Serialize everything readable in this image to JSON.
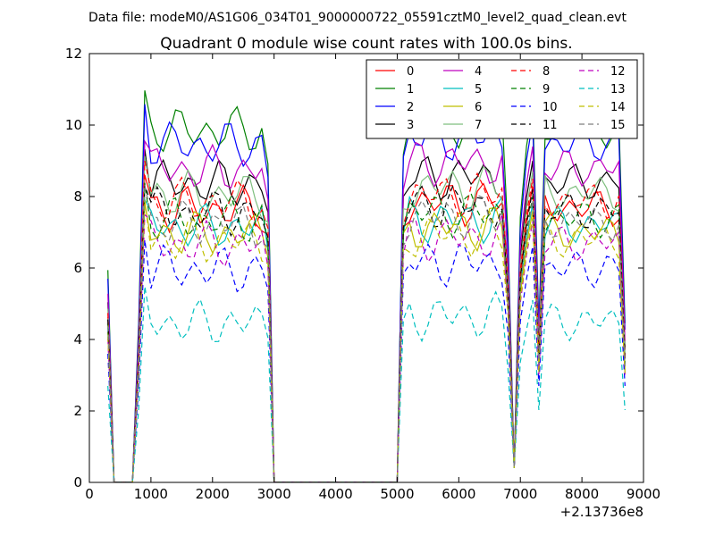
{
  "chart_data": {
    "type": "line",
    "suptitle": "Data file: modeM0/AS1G06_034T01_9000000722_05591cztM0_level2_quad_clean.evt",
    "title": "Quadrant 0 module wise count rates with 100.0s bins.",
    "xlabel": "",
    "ylabel": "",
    "x_offset_label": "+2.13736e8",
    "xlim": [
      0,
      9000
    ],
    "ylim": [
      0,
      12
    ],
    "x_ticks": [
      0,
      1000,
      2000,
      3000,
      4000,
      5000,
      6000,
      7000,
      8000,
      9000
    ],
    "x_tick_labels": [
      "0",
      "1000",
      "2000",
      "3000",
      "4000",
      "5000",
      "6000",
      "7000",
      "8000",
      "9000"
    ],
    "y_ticks": [
      0,
      2,
      4,
      6,
      8,
      10,
      12
    ],
    "y_tick_labels": [
      "0",
      "2",
      "4",
      "6",
      "8",
      "10",
      "12"
    ],
    "legend_position": "top-right",
    "x_base": [
      300,
      400,
      700,
      800,
      900,
      1000,
      1100,
      1200,
      1300,
      1400,
      1500,
      1600,
      1700,
      1800,
      1900,
      2000,
      2100,
      2200,
      2300,
      2400,
      2500,
      2600,
      2700,
      2800,
      2900,
      3000,
      4000,
      5000,
      5100,
      5200,
      5300,
      5400,
      5500,
      5600,
      5700,
      5800,
      5900,
      6000,
      6100,
      6200,
      6300,
      6400,
      6500,
      6600,
      6700,
      6800,
      6900,
      7000,
      7100,
      7200,
      7300,
      7400,
      7500,
      7600,
      7700,
      7800,
      7900,
      8000,
      8100,
      8200,
      8300,
      8400,
      8500,
      8600,
      8700
    ],
    "series": [
      {
        "name": "0",
        "color": "#ff0000",
        "dash": "solid",
        "base": 7.7
      },
      {
        "name": "1",
        "color": "#008000",
        "dash": "solid",
        "base": 9.9
      },
      {
        "name": "2",
        "color": "#0000ff",
        "dash": "solid",
        "base": 9.5
      },
      {
        "name": "3",
        "color": "#000000",
        "dash": "solid",
        "base": 8.4
      },
      {
        "name": "4",
        "color": "#bf00bf",
        "dash": "solid",
        "base": 8.8
      },
      {
        "name": "5",
        "color": "#00bfbf",
        "dash": "solid",
        "base": 7.2
      },
      {
        "name": "6",
        "color": "#bfbf00",
        "dash": "solid",
        "base": 7.0
      },
      {
        "name": "7",
        "color": "#7fbf7f",
        "dash": "solid",
        "base": 8.1
      },
      {
        "name": "8",
        "color": "#ff0000",
        "dash": "dash",
        "base": 7.9
      },
      {
        "name": "9",
        "color": "#008000",
        "dash": "dash",
        "base": 7.4
      },
      {
        "name": "10",
        "color": "#0000ff",
        "dash": "dash",
        "base": 6.0
      },
      {
        "name": "11",
        "color": "#000000",
        "dash": "dash",
        "base": 7.6
      },
      {
        "name": "12",
        "color": "#bf00bf",
        "dash": "dash",
        "base": 6.7
      },
      {
        "name": "13",
        "color": "#00bfbf",
        "dash": "dash",
        "base": 4.5
      },
      {
        "name": "14",
        "color": "#bfbf00",
        "dash": "dash",
        "base": 6.8
      },
      {
        "name": "15",
        "color": "#7f7f7f",
        "dash": "dash",
        "base": 7.3
      }
    ]
  }
}
